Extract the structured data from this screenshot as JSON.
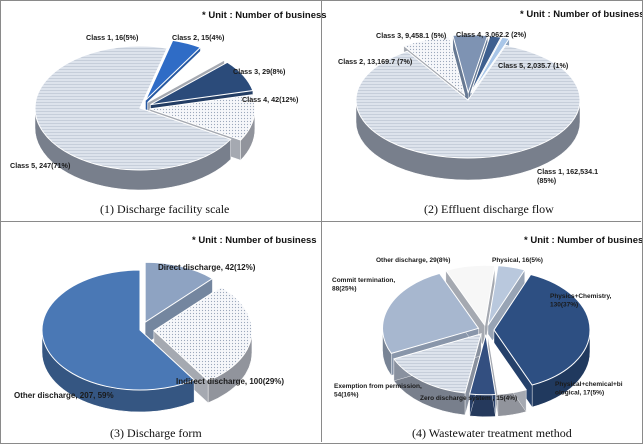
{
  "unit_note": "* Unit : Number of business",
  "chart_data": [
    {
      "type": "pie",
      "title": "(1) Discharge facility scale",
      "unit": "* Unit : Number of business",
      "slices": [
        {
          "label": "Class 1, 16(5%)",
          "value": 16,
          "color": "#2f6cc6",
          "pattern": "solid"
        },
        {
          "label": "Class 2, 15(4%)",
          "value": 15,
          "color": "#ffffff",
          "pattern": "white"
        },
        {
          "label": "Class 3, 29(8%)",
          "value": 29,
          "color": "#2b4b7a",
          "pattern": "solid"
        },
        {
          "label": "Class 4, 42(12%)",
          "value": 42,
          "color": "#f2f4f8",
          "pattern": "dots"
        },
        {
          "label": "Class 5, 247(71%)",
          "value": 247,
          "color": "#c6cfdd",
          "pattern": "lines"
        }
      ]
    },
    {
      "type": "pie",
      "title": "(2) Effluent discharge flow",
      "unit": "* Unit : Number of business",
      "slices": [
        {
          "label": "Class 4,  3,062.2 (2%)",
          "value": 3062.2,
          "color": "#3e5f8f",
          "pattern": "solid"
        },
        {
          "label": "Class 5,  2,035.7 (1%)",
          "value": 2035.7,
          "color": "#a9c6e8",
          "pattern": "solid"
        },
        {
          "label": "Class 1,  162,534.1 (85%)",
          "value": 162534.1,
          "color": "#ced4de",
          "pattern": "lines"
        },
        {
          "label": "Class 2,  13,169.7 (7%)",
          "value": 13169.7,
          "color": "#f2f4f8",
          "pattern": "dots"
        },
        {
          "label": "Class 3,  9,458.1 (5%)",
          "value": 9458.1,
          "color": "#7e93b3",
          "pattern": "solid"
        }
      ]
    },
    {
      "type": "pie",
      "title": "(3) Discharge form",
      "unit": "* Unit : Number of business",
      "slices": [
        {
          "label": "Direct discharge, 42(12%)",
          "value": 42,
          "color": "#8ea3c2",
          "pattern": "solid"
        },
        {
          "label": "Indirect discharge, 100(29%)",
          "value": 100,
          "color": "#eef1f6",
          "pattern": "dots"
        },
        {
          "label": "Other discharge, 207, 59%",
          "value": 207,
          "color": "#4a78b5",
          "pattern": "solid"
        }
      ]
    },
    {
      "type": "pie",
      "title": "(4) Wastewater treatment method",
      "unit": "* Unit : Number of business",
      "slices": [
        {
          "label": "Physical, 16(5%)",
          "value": 16,
          "color": "#b9c8dd",
          "pattern": "solid"
        },
        {
          "label": "Physics+Chemistry, 130(37%)",
          "value": 130,
          "color": "#2d4f82",
          "pattern": "solid"
        },
        {
          "label": "Physical+chemical+biological, 17(5%)",
          "value": 17,
          "color": "#ffffff",
          "pattern": "white"
        },
        {
          "label": "Zero discharge system , 15(4%)",
          "value": 15,
          "color": "#334f80",
          "pattern": "solid"
        },
        {
          "label": "Exemption from permission, 54(16%)",
          "value": 54,
          "color": "#dfe4ec",
          "pattern": "lines"
        },
        {
          "label": "Commit termination, 88(25%)",
          "value": 88,
          "color": "#a7b7cf",
          "pattern": "solid"
        },
        {
          "label": "Other discharge, 29(8%)",
          "value": 29,
          "color": "#f7f7f7",
          "pattern": "white"
        }
      ]
    }
  ]
}
